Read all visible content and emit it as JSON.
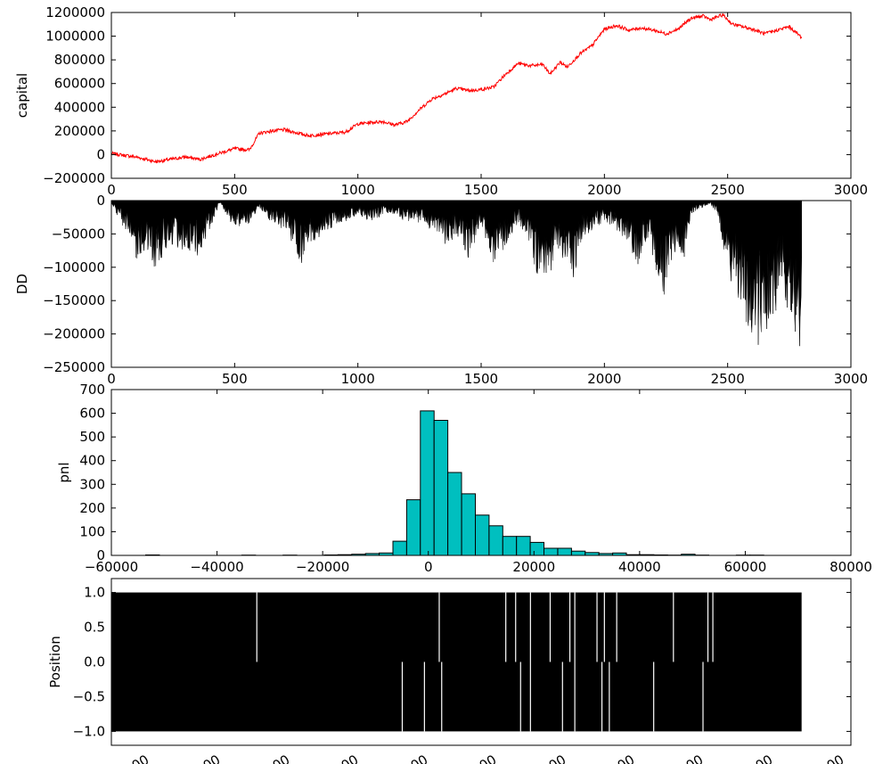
{
  "chart_data": [
    {
      "type": "line",
      "ylabel": "capital",
      "xlim": [
        0,
        3000
      ],
      "ylim": [
        -200000,
        1200000
      ],
      "xticks": [
        "0",
        "500",
        "1000",
        "1500",
        "2000",
        "2500",
        "3000"
      ],
      "yticks": [
        "1200000",
        "1000000",
        "800000",
        "600000",
        "400000",
        "200000",
        "0",
        "−200000"
      ],
      "line_color": "#ff0000",
      "series": [
        {
          "x": [
            0,
            100,
            180,
            300,
            360,
            420,
            500,
            560,
            600,
            650,
            700,
            760,
            800,
            900,
            950,
            1000,
            1100,
            1150,
            1200,
            1250,
            1300,
            1350,
            1400,
            1450,
            1500,
            1550,
            1600,
            1650,
            1700,
            1750,
            1780,
            1820,
            1850,
            1900,
            1950,
            2000,
            2050,
            2100,
            2150,
            2200,
            2250,
            2300,
            2350,
            2400,
            2430,
            2480,
            2520,
            2600,
            2650,
            2700,
            2750,
            2800
          ],
          "y": [
            10000,
            -20000,
            -60000,
            -20000,
            -40000,
            0,
            50000,
            40000,
            180000,
            200000,
            210000,
            180000,
            160000,
            180000,
            190000,
            260000,
            280000,
            250000,
            280000,
            380000,
            470000,
            510000,
            560000,
            540000,
            550000,
            570000,
            680000,
            770000,
            750000,
            760000,
            680000,
            780000,
            740000,
            850000,
            920000,
            1060000,
            1090000,
            1050000,
            1070000,
            1050000,
            1020000,
            1060000,
            1150000,
            1170000,
            1140000,
            1180000,
            1100000,
            1060000,
            1020000,
            1050000,
            1080000,
            990000
          ]
        }
      ]
    },
    {
      "type": "area",
      "ylabel": "DD",
      "xlim": [
        0,
        3000
      ],
      "ylim": [
        -250000,
        0
      ],
      "xticks": [
        "0",
        "500",
        "1000",
        "1500",
        "2000",
        "2500",
        "3000"
      ],
      "yticks": [
        "0",
        "−50000",
        "−100000",
        "−150000",
        "−200000",
        "−250000"
      ],
      "fill_color": "#000000",
      "series": [
        {
          "x": [
            0,
            40,
            80,
            100,
            150,
            180,
            200,
            250,
            300,
            350,
            380,
            420,
            440,
            480,
            520,
            560,
            600,
            650,
            700,
            730,
            770,
            800,
            850,
            900,
            950,
            1000,
            1050,
            1100,
            1150,
            1200,
            1250,
            1300,
            1350,
            1400,
            1450,
            1500,
            1550,
            1600,
            1650,
            1700,
            1720,
            1760,
            1780,
            1800,
            1840,
            1870,
            1900,
            1950,
            2000,
            2050,
            2100,
            2130,
            2160,
            2200,
            2240,
            2260,
            2300,
            2330,
            2350,
            2400,
            2430,
            2460,
            2500,
            2550,
            2600,
            2620,
            2650,
            2700,
            2720,
            2750,
            2780,
            2790,
            2800
          ],
          "y": [
            -5000,
            -30000,
            -60000,
            -80000,
            -70000,
            -100000,
            -80000,
            -60000,
            -70000,
            -80000,
            -60000,
            -20000,
            -5000,
            -30000,
            -40000,
            -30000,
            -10000,
            -30000,
            -40000,
            -60000,
            -90000,
            -60000,
            -50000,
            -40000,
            -30000,
            -20000,
            -30000,
            -20000,
            -20000,
            -30000,
            -30000,
            -40000,
            -60000,
            -50000,
            -80000,
            -30000,
            -90000,
            -60000,
            -30000,
            -60000,
            -100000,
            -140000,
            -110000,
            -60000,
            -90000,
            -120000,
            -60000,
            -40000,
            -30000,
            -40000,
            -60000,
            -100000,
            -60000,
            -80000,
            -140000,
            -100000,
            -60000,
            -90000,
            -20000,
            -10000,
            -5000,
            -20000,
            -100000,
            -140000,
            -190000,
            -200000,
            -180000,
            -150000,
            -140000,
            -160000,
            -190000,
            -215000,
            -200000
          ]
        }
      ]
    },
    {
      "type": "bar",
      "ylabel": "pnl",
      "xlim": [
        -60000,
        80000
      ],
      "ylim": [
        0,
        700
      ],
      "xticks": [
        "−60000",
        "−40000",
        "−20000",
        "0",
        "20000",
        "40000",
        "60000",
        "80000"
      ],
      "yticks": [
        "700",
        "600",
        "500",
        "400",
        "300",
        "200",
        "100",
        "0"
      ],
      "bar_color": "#00bfbf",
      "bin_width": 2600,
      "bin_edges_start": -53500,
      "values": [
        2,
        0,
        0,
        0,
        0,
        0,
        0,
        1,
        0,
        0,
        1,
        0,
        0,
        2,
        3,
        5,
        8,
        10,
        60,
        235,
        610,
        570,
        350,
        260,
        170,
        125,
        80,
        80,
        55,
        30,
        30,
        18,
        12,
        8,
        10,
        3,
        3,
        2,
        1,
        5,
        1,
        0,
        0,
        1,
        1,
        0,
        0,
        0,
        0,
        0,
        0,
        0,
        0,
        0,
        0,
        0,
        0,
        0,
        0,
        0,
        0,
        0,
        0,
        0,
        0,
        0,
        0,
        0,
        0,
        0,
        0,
        0,
        0,
        0,
        0,
        0,
        0,
        0,
        0,
        0,
        1
      ]
    },
    {
      "type": "line",
      "ylabel": "Position",
      "xlim": [
        0,
        3000
      ],
      "ylim": [
        -1.2,
        1.2
      ],
      "yticks": [
        "1.0",
        "0.5",
        "0.0",
        "−0.5",
        "−1.0"
      ],
      "xticks_partial": [
        "00",
        "00",
        "00",
        "00",
        "00",
        "00",
        "00",
        "00",
        "00",
        "00",
        "00"
      ],
      "line_color": "#000000",
      "description_values": [
        -1.0,
        0.0,
        1.0
      ]
    }
  ]
}
